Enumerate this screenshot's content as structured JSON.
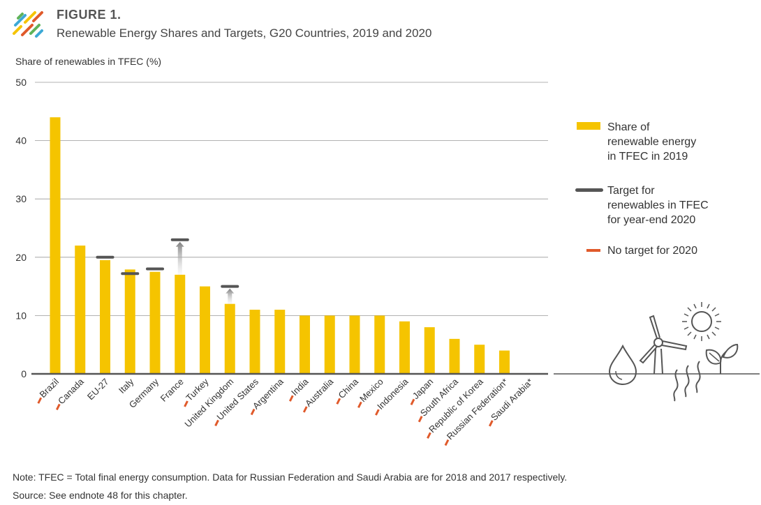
{
  "header": {
    "figure_label": "FIGURE 1.",
    "title": "Renewable Energy Shares and Targets, G20 Countries, 2019 and 2020"
  },
  "footer": {
    "note": "Note: TFEC = Total final energy consumption. Data for Russian Federation and Saudi Arabia are for 2018 and 2017 respectively.",
    "source": "Source: See endnote 48 for this chapter."
  },
  "legend": {
    "share": "Share of renewable energy in TFEC in 2019",
    "share_lines": [
      "Share of",
      "renewable energy",
      "in TFEC in 2019"
    ],
    "target": "Target for renewables in TFEC for year-end 2020",
    "target_lines": [
      "Target for",
      "renewables in TFEC",
      "for year-end 2020"
    ],
    "no_target": "No target for 2020"
  },
  "colors": {
    "bar": "#F5C400",
    "target": "#555555",
    "no_target": "#E05A2B",
    "grid": "#999999",
    "axis": "#555555",
    "logo": [
      "#F5C400",
      "#E05A2B",
      "#3DA9D6",
      "#5FB35A"
    ]
  },
  "icons": [
    "logo-icon",
    "water-drop-icon",
    "wind-turbine-icon",
    "sun-icon",
    "heat-waves-icon",
    "leaf-sprout-icon"
  ],
  "chart_data": {
    "type": "bar",
    "ylabel": "Share of renewables in TFEC (%)",
    "ylim": [
      0,
      50
    ],
    "yticks": [
      0,
      10,
      20,
      30,
      40,
      50
    ],
    "grid": true,
    "legend_position": "right",
    "categories": [
      "Brazil",
      "Canada",
      "EU-27",
      "Italy",
      "Germany",
      "France",
      "Turkey",
      "United Kingdom",
      "United States",
      "Argentina",
      "India",
      "Australia",
      "China",
      "Mexico",
      "Indonesia",
      "Japan",
      "South Africa",
      "Republic of Korea",
      "Russian Federation*",
      "Saudi Arabia*"
    ],
    "series": [
      {
        "name": "Share of renewable energy in TFEC in 2019",
        "values": [
          44,
          22,
          19.5,
          17.9,
          17.5,
          17,
          15,
          12,
          11,
          11,
          10,
          10,
          10,
          10,
          9,
          8,
          6,
          5,
          4,
          0
        ]
      },
      {
        "name": "Target for renewables in TFEC for year-end 2020",
        "values": [
          null,
          null,
          20,
          17.2,
          18,
          23,
          null,
          15,
          null,
          null,
          null,
          null,
          null,
          null,
          null,
          null,
          null,
          null,
          null,
          null
        ]
      }
    ],
    "no_target_for_2020": [
      true,
      true,
      false,
      false,
      false,
      false,
      true,
      false,
      true,
      true,
      true,
      true,
      true,
      true,
      true,
      true,
      true,
      true,
      true,
      true
    ]
  }
}
